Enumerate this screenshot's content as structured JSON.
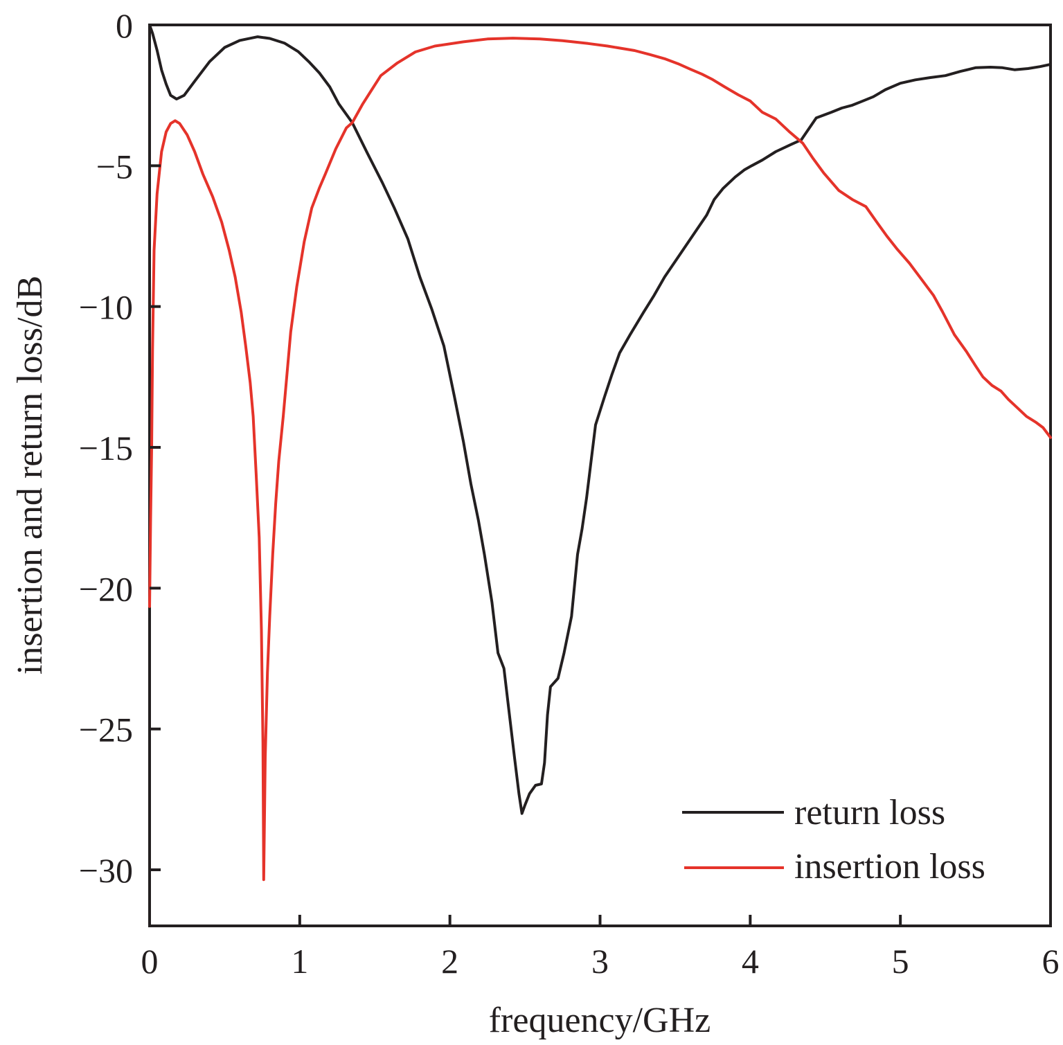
{
  "chart_data": {
    "type": "line",
    "title": "",
    "xlabel": "frequency/GHz",
    "ylabel": "insertion and return loss/dB",
    "xlim": [
      0,
      6
    ],
    "ylim": [
      -32,
      0
    ],
    "xticks": [
      0,
      1,
      2,
      3,
      4,
      5,
      6
    ],
    "xtick_labels": [
      "0",
      "1",
      "2",
      "3",
      "4",
      "5",
      "6"
    ],
    "yticks": [
      0,
      -5,
      -10,
      -15,
      -20,
      -25,
      -30
    ],
    "ytick_labels": [
      "0",
      "−5",
      "−10",
      "−15",
      "−20",
      "−25",
      "−30"
    ],
    "grid": false,
    "legend": {
      "position": "bottom-right"
    },
    "series": [
      {
        "name": "return loss",
        "color": "#231f20",
        "points": [
          [
            0.0,
            0.0
          ],
          [
            0.02,
            -0.3
          ],
          [
            0.05,
            -0.9
          ],
          [
            0.08,
            -1.6
          ],
          [
            0.11,
            -2.1
          ],
          [
            0.14,
            -2.5
          ],
          [
            0.18,
            -2.63
          ],
          [
            0.23,
            -2.5
          ],
          [
            0.3,
            -2.0
          ],
          [
            0.4,
            -1.3
          ],
          [
            0.5,
            -0.8
          ],
          [
            0.6,
            -0.55
          ],
          [
            0.72,
            -0.42
          ],
          [
            0.8,
            -0.48
          ],
          [
            0.9,
            -0.65
          ],
          [
            0.99,
            -0.95
          ],
          [
            1.06,
            -1.3
          ],
          [
            1.13,
            -1.7
          ],
          [
            1.2,
            -2.2
          ],
          [
            1.26,
            -2.8
          ],
          [
            1.35,
            -3.47
          ],
          [
            1.45,
            -4.55
          ],
          [
            1.55,
            -5.6
          ],
          [
            1.63,
            -6.5
          ],
          [
            1.72,
            -7.6
          ],
          [
            1.8,
            -8.95
          ],
          [
            1.88,
            -10.1
          ],
          [
            1.96,
            -11.4
          ],
          [
            2.03,
            -13.2
          ],
          [
            2.09,
            -14.8
          ],
          [
            2.14,
            -16.3
          ],
          [
            2.19,
            -17.6
          ],
          [
            2.23,
            -18.8
          ],
          [
            2.28,
            -20.5
          ],
          [
            2.32,
            -22.3
          ],
          [
            2.36,
            -22.85
          ],
          [
            2.39,
            -24.2
          ],
          [
            2.43,
            -26.0
          ],
          [
            2.46,
            -27.3
          ],
          [
            2.48,
            -28.0
          ],
          [
            2.5,
            -27.7
          ],
          [
            2.53,
            -27.3
          ],
          [
            2.57,
            -27.0
          ],
          [
            2.61,
            -26.95
          ],
          [
            2.63,
            -26.2
          ],
          [
            2.65,
            -24.5
          ],
          [
            2.67,
            -23.5
          ],
          [
            2.72,
            -23.2
          ],
          [
            2.76,
            -22.3
          ],
          [
            2.81,
            -21.0
          ],
          [
            2.85,
            -18.8
          ],
          [
            2.88,
            -17.9
          ],
          [
            2.91,
            -16.8
          ],
          [
            2.94,
            -15.5
          ],
          [
            2.97,
            -14.2
          ],
          [
            3.03,
            -13.2
          ],
          [
            3.08,
            -12.4
          ],
          [
            3.13,
            -11.65
          ],
          [
            3.2,
            -11.0
          ],
          [
            3.29,
            -10.2
          ],
          [
            3.36,
            -9.6
          ],
          [
            3.43,
            -8.95
          ],
          [
            3.5,
            -8.4
          ],
          [
            3.57,
            -7.85
          ],
          [
            3.64,
            -7.3
          ],
          [
            3.71,
            -6.75
          ],
          [
            3.76,
            -6.2
          ],
          [
            3.82,
            -5.8
          ],
          [
            3.9,
            -5.4
          ],
          [
            3.96,
            -5.15
          ],
          [
            4.01,
            -5.0
          ],
          [
            4.08,
            -4.8
          ],
          [
            4.17,
            -4.5
          ],
          [
            4.27,
            -4.25
          ],
          [
            4.34,
            -4.08
          ],
          [
            4.44,
            -3.3
          ],
          [
            4.54,
            -3.1
          ],
          [
            4.61,
            -2.95
          ],
          [
            4.68,
            -2.85
          ],
          [
            4.75,
            -2.7
          ],
          [
            4.82,
            -2.55
          ],
          [
            4.9,
            -2.3
          ],
          [
            5.0,
            -2.07
          ],
          [
            5.1,
            -1.95
          ],
          [
            5.2,
            -1.87
          ],
          [
            5.3,
            -1.8
          ],
          [
            5.4,
            -1.65
          ],
          [
            5.5,
            -1.52
          ],
          [
            5.6,
            -1.5
          ],
          [
            5.68,
            -1.52
          ],
          [
            5.76,
            -1.59
          ],
          [
            5.85,
            -1.55
          ],
          [
            5.93,
            -1.48
          ],
          [
            6.0,
            -1.4
          ]
        ]
      },
      {
        "name": "insertion loss",
        "color": "#e5332a",
        "points": [
          [
            0.0,
            -20.65
          ],
          [
            0.007,
            -17.5
          ],
          [
            0.014,
            -15.0
          ],
          [
            0.02,
            -11.5
          ],
          [
            0.03,
            -8.0
          ],
          [
            0.05,
            -6.0
          ],
          [
            0.08,
            -4.5
          ],
          [
            0.11,
            -3.8
          ],
          [
            0.14,
            -3.5
          ],
          [
            0.17,
            -3.4
          ],
          [
            0.2,
            -3.5
          ],
          [
            0.25,
            -3.9
          ],
          [
            0.3,
            -4.5
          ],
          [
            0.355,
            -5.3
          ],
          [
            0.42,
            -6.1
          ],
          [
            0.48,
            -7.0
          ],
          [
            0.53,
            -8.0
          ],
          [
            0.57,
            -8.95
          ],
          [
            0.61,
            -10.2
          ],
          [
            0.64,
            -11.4
          ],
          [
            0.67,
            -12.7
          ],
          [
            0.69,
            -13.9
          ],
          [
            0.71,
            -16.0
          ],
          [
            0.73,
            -18.2
          ],
          [
            0.745,
            -21.5
          ],
          [
            0.755,
            -25.5
          ],
          [
            0.76,
            -30.35
          ],
          [
            0.77,
            -26.0
          ],
          [
            0.785,
            -23.0
          ],
          [
            0.8,
            -21.0
          ],
          [
            0.82,
            -18.8
          ],
          [
            0.84,
            -17.0
          ],
          [
            0.86,
            -15.5
          ],
          [
            0.89,
            -13.9
          ],
          [
            0.94,
            -10.9
          ],
          [
            0.98,
            -9.3
          ],
          [
            1.03,
            -7.7
          ],
          [
            1.08,
            -6.5
          ],
          [
            1.13,
            -5.8
          ],
          [
            1.17,
            -5.3
          ],
          [
            1.24,
            -4.4
          ],
          [
            1.31,
            -3.66
          ],
          [
            1.35,
            -3.47
          ],
          [
            1.42,
            -2.8
          ],
          [
            1.48,
            -2.3
          ],
          [
            1.54,
            -1.8
          ],
          [
            1.65,
            -1.35
          ],
          [
            1.77,
            -0.96
          ],
          [
            1.9,
            -0.75
          ],
          [
            2.09,
            -0.6
          ],
          [
            2.25,
            -0.5
          ],
          [
            2.42,
            -0.47
          ],
          [
            2.6,
            -0.5
          ],
          [
            2.75,
            -0.56
          ],
          [
            2.92,
            -0.66
          ],
          [
            3.05,
            -0.75
          ],
          [
            3.23,
            -0.91
          ],
          [
            3.33,
            -1.05
          ],
          [
            3.43,
            -1.2
          ],
          [
            3.52,
            -1.38
          ],
          [
            3.6,
            -1.57
          ],
          [
            3.68,
            -1.75
          ],
          [
            3.75,
            -1.94
          ],
          [
            3.83,
            -2.2
          ],
          [
            3.92,
            -2.48
          ],
          [
            4.0,
            -2.7
          ],
          [
            4.08,
            -3.1
          ],
          [
            4.17,
            -3.34
          ],
          [
            4.26,
            -3.79
          ],
          [
            4.35,
            -4.2
          ],
          [
            4.42,
            -4.75
          ],
          [
            4.49,
            -5.26
          ],
          [
            4.59,
            -5.88
          ],
          [
            4.68,
            -6.2
          ],
          [
            4.77,
            -6.45
          ],
          [
            4.84,
            -6.98
          ],
          [
            4.91,
            -7.5
          ],
          [
            4.98,
            -7.97
          ],
          [
            5.06,
            -8.46
          ],
          [
            5.15,
            -9.1
          ],
          [
            5.22,
            -9.6
          ],
          [
            5.28,
            -10.18
          ],
          [
            5.36,
            -11.0
          ],
          [
            5.44,
            -11.6
          ],
          [
            5.5,
            -12.1
          ],
          [
            5.55,
            -12.5
          ],
          [
            5.61,
            -12.8
          ],
          [
            5.67,
            -13.0
          ],
          [
            5.72,
            -13.3
          ],
          [
            5.78,
            -13.6
          ],
          [
            5.84,
            -13.9
          ],
          [
            5.9,
            -14.1
          ],
          [
            5.95,
            -14.3
          ],
          [
            6.0,
            -14.65
          ]
        ]
      }
    ]
  }
}
